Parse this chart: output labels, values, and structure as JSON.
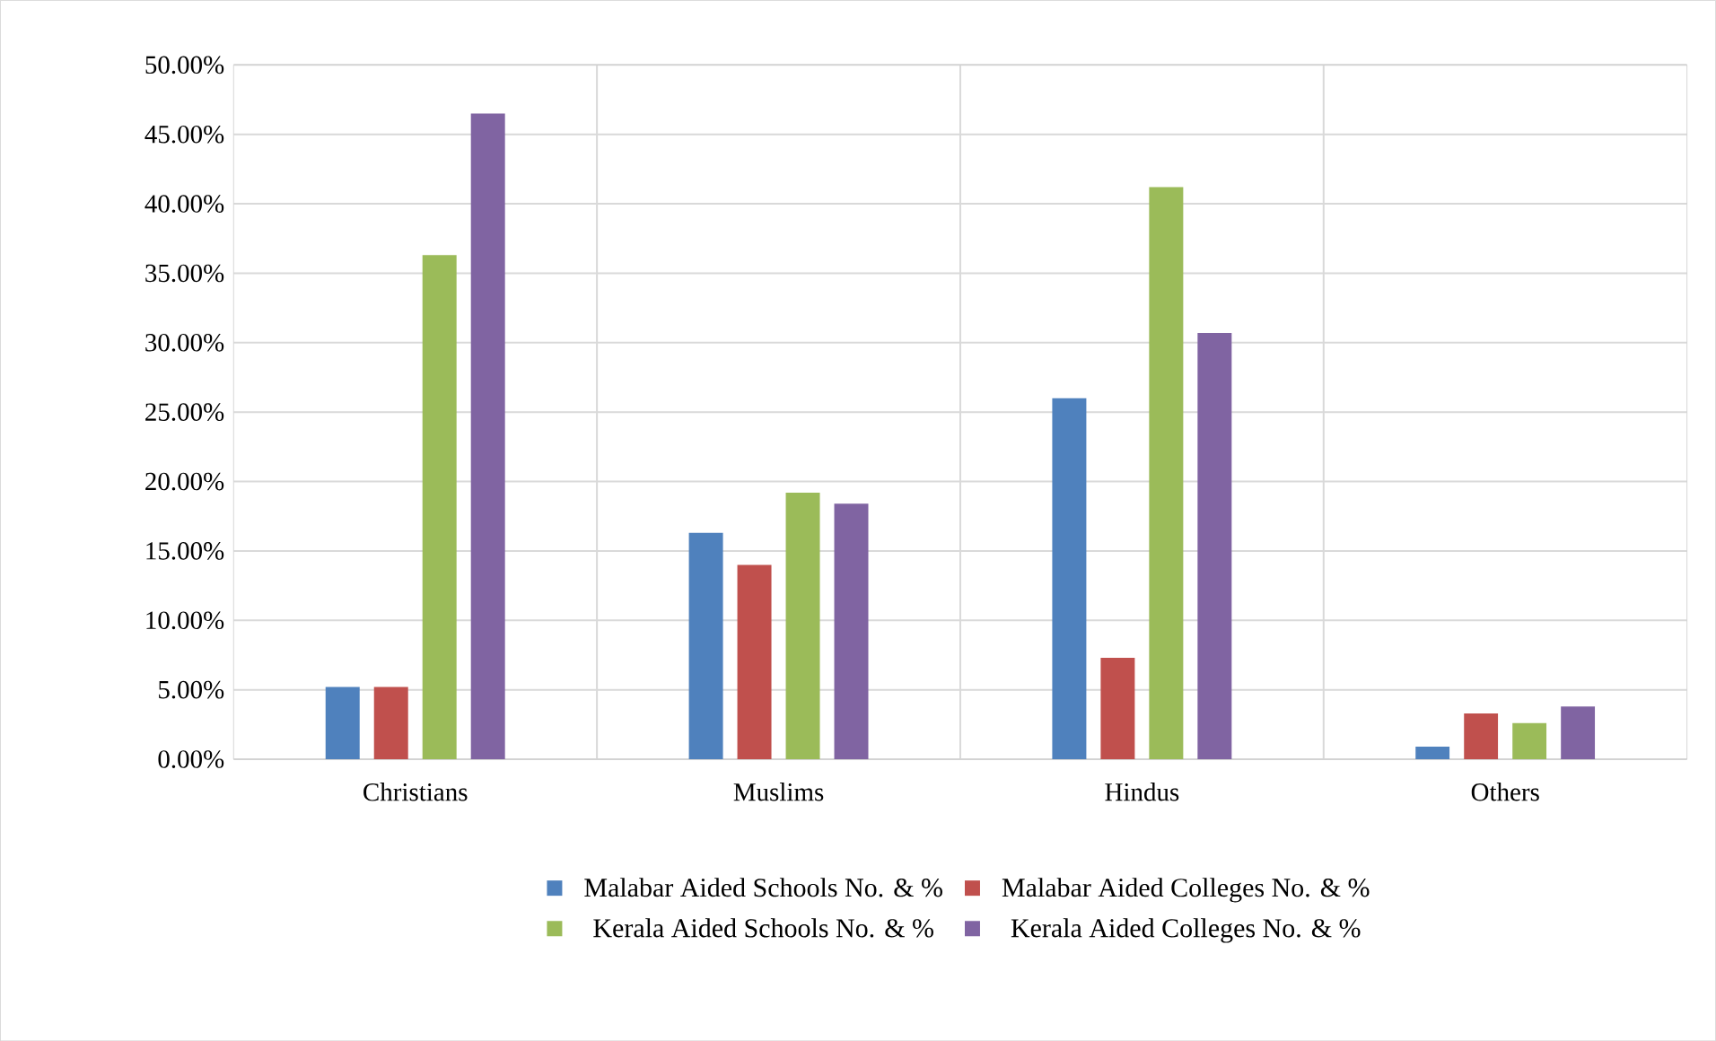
{
  "chart_data": {
    "type": "bar",
    "categories": [
      "Christians",
      "Muslims",
      "Hindus",
      "Others"
    ],
    "series": [
      {
        "name": "Malabar Aided Schools No. & %",
        "color": "#4f81bd",
        "values": [
          5.2,
          16.3,
          26.0,
          0.9
        ]
      },
      {
        "name": "Malabar Aided Colleges No. & %",
        "color": "#c0504d",
        "values": [
          5.2,
          14.0,
          7.3,
          3.3
        ]
      },
      {
        "name": "Kerala Aided Schools No. & %",
        "color": "#9bbb59",
        "values": [
          36.3,
          19.2,
          41.2,
          2.6
        ]
      },
      {
        "name": "Kerala Aided Colleges No. & %",
        "color": "#8064a2",
        "values": [
          46.5,
          18.4,
          30.7,
          3.8
        ]
      }
    ],
    "ylim": [
      0,
      50
    ],
    "yticks": [
      {
        "value": 0,
        "label": "0.00%"
      },
      {
        "value": 5,
        "label": "5.00%"
      },
      {
        "value": 10,
        "label": "10.00%"
      },
      {
        "value": 15,
        "label": "15.00%"
      },
      {
        "value": 20,
        "label": "20.00%"
      },
      {
        "value": 25,
        "label": "25.00%"
      },
      {
        "value": 30,
        "label": "30.00%"
      },
      {
        "value": 35,
        "label": "35.00%"
      },
      {
        "value": 40,
        "label": "40.00%"
      },
      {
        "value": 45,
        "label": "45.00%"
      },
      {
        "value": 50,
        "label": "50.00%"
      }
    ],
    "grid": true,
    "legend": "bottom"
  }
}
